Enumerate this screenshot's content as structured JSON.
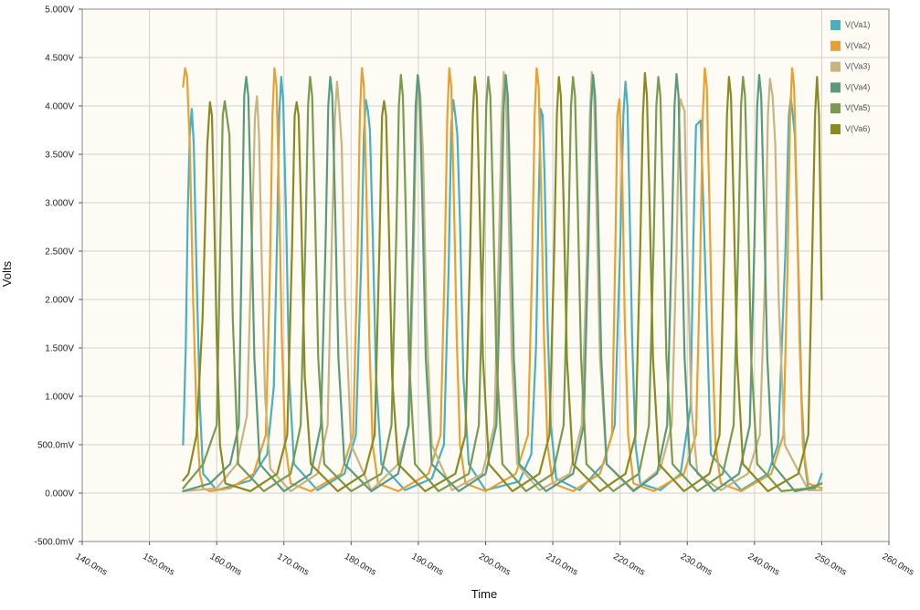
{
  "chart_data": {
    "type": "line",
    "title": "",
    "xlabel": "Time",
    "ylabel": "Volts",
    "x_unit": "ms",
    "y_unit": "V",
    "xlim": [
      140,
      260
    ],
    "ylim": [
      -0.5,
      5.0
    ],
    "x_ticks": [
      140,
      150,
      160,
      170,
      180,
      190,
      200,
      210,
      220,
      230,
      240,
      250,
      260
    ],
    "x_tick_labels": [
      "140.0ms",
      "150.0ms",
      "160.0ms",
      "170.0ms",
      "180.0ms",
      "190.0ms",
      "200.0ms",
      "210.0ms",
      "220.0ms",
      "230.0ms",
      "240.0ms",
      "250.0ms",
      "260.0ms"
    ],
    "y_ticks": [
      -0.5,
      0.0,
      0.5,
      1.0,
      1.5,
      2.0,
      2.5,
      3.0,
      3.5,
      4.0,
      4.5,
      5.0
    ],
    "y_tick_labels": [
      "-500.0mV",
      "0.000V",
      "500.0mV",
      "1.000V",
      "1.500V",
      "2.000V",
      "2.500V",
      "3.000V",
      "3.500V",
      "4.000V",
      "4.500V",
      "5.000V"
    ],
    "grid": true,
    "legend_position": "top-right",
    "background_color": "#fdfbf4",
    "series": [
      {
        "name": "V(Va1)",
        "color": "#4aafc0",
        "x": [
          155.0,
          155.4,
          155.7,
          156.0,
          156.3,
          156.6,
          157.0,
          157.5,
          158.0,
          160.0,
          165.0,
          167.5,
          168.5,
          169.0,
          169.3,
          169.6,
          169.9,
          170.3,
          170.8,
          171.5,
          175.0,
          179.0,
          180.7,
          181.5,
          181.9,
          182.2,
          182.5,
          182.8,
          183.2,
          183.7,
          184.5,
          188.0,
          192.0,
          193.8,
          194.5,
          194.9,
          195.2,
          195.5,
          195.8,
          196.2,
          196.7,
          197.5,
          200.0,
          205.0,
          206.8,
          207.5,
          207.9,
          208.2,
          208.5,
          208.8,
          209.2,
          209.7,
          210.5,
          214.0,
          217.5,
          219.2,
          220.0,
          220.5,
          220.8,
          221.1,
          221.4,
          221.8,
          222.3,
          223.0,
          226.0,
          229.0,
          230.5,
          230.9,
          231.3,
          231.6,
          232.0,
          232.6,
          233.5,
          238.0,
          242.0,
          243.5,
          244.6,
          245.1,
          245.4,
          245.7,
          246.0,
          246.5,
          247.0,
          247.5,
          248.0,
          248.5,
          249.0,
          249.5,
          250.0
        ],
        "y": [
          0.5,
          1.5,
          2.9,
          3.7,
          3.97,
          3.6,
          2.3,
          0.9,
          0.2,
          0.03,
          0.13,
          0.4,
          1.1,
          2.7,
          3.9,
          4.3,
          4.05,
          2.9,
          1.2,
          0.3,
          0.03,
          0.2,
          0.6,
          2.4,
          3.7,
          4.06,
          3.95,
          3.75,
          2.7,
          1.2,
          0.3,
          0.03,
          0.15,
          0.5,
          2.3,
          3.8,
          4.06,
          3.9,
          3.7,
          2.8,
          1.2,
          0.3,
          0.03,
          0.12,
          0.4,
          1.5,
          3.0,
          3.97,
          3.9,
          3.2,
          1.8,
          0.7,
          0.15,
          0.03,
          0.3,
          0.7,
          2.5,
          3.9,
          4.25,
          4.0,
          3.0,
          1.6,
          0.5,
          0.1,
          0.03,
          0.2,
          0.9,
          2.6,
          3.8,
          3.82,
          3.85,
          2.5,
          0.4,
          0.03,
          0.2,
          0.5,
          2.5,
          3.9,
          4.09,
          3.9,
          3.7,
          2.4,
          1.0,
          0.3,
          0.05,
          0.03,
          0.05,
          0.1,
          0.2
        ]
      },
      {
        "name": "V(Va2)",
        "color": "#e8a030",
        "x": [
          155.0,
          155.3,
          155.6,
          156.0,
          156.5,
          157.0,
          157.5,
          158.0,
          159.0,
          162.0,
          165.5,
          167.3,
          167.9,
          168.3,
          168.6,
          168.9,
          169.3,
          169.7,
          170.2,
          171.0,
          174.0,
          178.5,
          180.3,
          180.9,
          181.3,
          181.6,
          181.9,
          182.3,
          182.7,
          183.2,
          184.0,
          187.0,
          191.5,
          193.3,
          193.9,
          194.3,
          194.6,
          194.9,
          195.3,
          195.7,
          196.2,
          197.0,
          200.0,
          204.5,
          206.3,
          206.9,
          207.3,
          207.6,
          207.9,
          208.3,
          208.7,
          209.2,
          210.0,
          213.0,
          217.0,
          218.8,
          219.3,
          219.6,
          219.9,
          220.3,
          220.7,
          221.2,
          222.0,
          225.0,
          229.5,
          231.3,
          231.9,
          232.3,
          232.6,
          232.9,
          233.3,
          233.7,
          234.2,
          235.0,
          238.0,
          242.5,
          244.3,
          244.9,
          245.3,
          245.6,
          245.9,
          246.3,
          246.7,
          247.2,
          248.0,
          250.0
        ],
        "y": [
          4.2,
          4.39,
          4.3,
          3.6,
          2.0,
          0.8,
          0.2,
          0.05,
          0.02,
          0.05,
          0.2,
          0.6,
          2.2,
          3.9,
          4.39,
          4.2,
          3.0,
          1.6,
          0.5,
          0.1,
          0.02,
          0.2,
          0.6,
          2.3,
          3.9,
          4.39,
          4.2,
          3.0,
          1.6,
          0.5,
          0.1,
          0.02,
          0.2,
          0.6,
          2.3,
          3.9,
          4.39,
          4.2,
          3.0,
          1.6,
          0.5,
          0.1,
          0.02,
          0.2,
          0.6,
          2.3,
          3.9,
          4.39,
          4.2,
          3.0,
          1.6,
          0.5,
          0.1,
          0.02,
          0.2,
          0.6,
          2.5,
          3.9,
          4.07,
          3.4,
          1.8,
          0.6,
          0.1,
          0.02,
          0.2,
          0.6,
          2.3,
          3.9,
          4.39,
          4.2,
          3.0,
          1.6,
          0.5,
          0.1,
          0.02,
          0.2,
          0.6,
          2.3,
          3.9,
          4.39,
          4.2,
          3.0,
          1.6,
          0.5,
          0.1,
          0.05
        ]
      },
      {
        "name": "V(Va3)",
        "color": "#c8b480",
        "x": [
          155.0,
          160.0,
          163.0,
          164.5,
          165.3,
          165.7,
          166.0,
          166.3,
          166.7,
          167.2,
          168.0,
          171.0,
          175.0,
          176.5,
          177.2,
          177.6,
          177.9,
          178.2,
          178.6,
          179.1,
          180.0,
          183.0,
          187.0,
          188.6,
          189.3,
          189.7,
          190.0,
          190.3,
          190.7,
          191.2,
          192.0,
          195.0,
          199.5,
          201.3,
          202.0,
          202.4,
          202.7,
          203.0,
          203.4,
          203.9,
          204.7,
          208.0,
          212.5,
          214.3,
          215.1,
          215.5,
          215.8,
          216.1,
          216.5,
          217.0,
          218.0,
          222.0,
          226.0,
          227.7,
          228.4,
          228.8,
          229.0,
          229.3,
          229.6,
          230.0,
          230.6,
          231.5,
          235.0,
          239.0,
          240.8,
          241.6,
          242.0,
          242.3,
          242.7,
          243.1,
          243.6,
          244.5,
          248.0,
          250.0
        ],
        "y": [
          0.02,
          0.05,
          0.3,
          0.8,
          2.8,
          3.9,
          4.1,
          3.7,
          2.4,
          1.0,
          0.25,
          0.02,
          0.2,
          0.7,
          2.8,
          3.9,
          4.25,
          4.0,
          3.6,
          2.0,
          0.5,
          0.03,
          0.3,
          0.7,
          2.5,
          3.9,
          4.3,
          4.1,
          3.5,
          1.8,
          0.5,
          0.03,
          0.2,
          0.7,
          2.6,
          3.9,
          4.35,
          4.2,
          3.0,
          1.4,
          0.3,
          0.03,
          0.2,
          0.7,
          2.5,
          3.9,
          4.35,
          4.2,
          3.0,
          1.4,
          0.3,
          0.03,
          0.25,
          0.7,
          2.5,
          3.9,
          4.07,
          4.0,
          3.95,
          2.5,
          0.9,
          0.2,
          0.03,
          0.2,
          0.6,
          2.3,
          3.9,
          4.28,
          4.1,
          3.6,
          2.0,
          0.5,
          0.03,
          0.03
        ]
      },
      {
        "name": "V(Va4)",
        "color": "#5a9a7a",
        "x": [
          155.0,
          159.0,
          162.0,
          163.3,
          163.8,
          164.1,
          164.4,
          164.7,
          165.1,
          165.6,
          166.4,
          170.0,
          174.0,
          175.5,
          176.2,
          176.6,
          176.9,
          177.2,
          177.6,
          178.1,
          179.0,
          183.0,
          187.0,
          188.5,
          189.2,
          189.6,
          189.9,
          190.2,
          190.6,
          191.1,
          192.0,
          196.0,
          200.0,
          201.6,
          202.3,
          202.7,
          203.0,
          203.3,
          203.7,
          204.2,
          205.0,
          209.0,
          213.0,
          214.6,
          215.3,
          215.7,
          216.0,
          216.3,
          216.7,
          217.2,
          218.0,
          222.0,
          225.5,
          227.0,
          227.7,
          228.1,
          228.4,
          228.7,
          229.1,
          229.6,
          230.4,
          234.0,
          237.7,
          239.3,
          240.0,
          240.4,
          240.7,
          241.0,
          241.4,
          241.9,
          242.7,
          246.0,
          248.5,
          250.0
        ],
        "y": [
          0.02,
          0.1,
          0.3,
          0.7,
          2.8,
          4.1,
          4.3,
          4.1,
          3.0,
          1.4,
          0.3,
          0.02,
          0.2,
          0.7,
          2.6,
          4.0,
          4.3,
          4.1,
          3.0,
          1.4,
          0.3,
          0.02,
          0.2,
          0.7,
          2.6,
          4.0,
          4.32,
          4.1,
          3.0,
          1.4,
          0.3,
          0.02,
          0.2,
          0.7,
          2.6,
          4.0,
          4.32,
          4.1,
          3.0,
          1.4,
          0.3,
          0.02,
          0.2,
          0.7,
          2.6,
          4.0,
          4.32,
          4.1,
          3.0,
          1.4,
          0.3,
          0.02,
          0.2,
          0.7,
          2.6,
          4.0,
          4.33,
          4.1,
          3.0,
          1.4,
          0.3,
          0.02,
          0.2,
          0.7,
          2.6,
          4.0,
          4.32,
          4.1,
          3.0,
          1.4,
          0.3,
          0.02,
          0.05,
          0.1
        ]
      },
      {
        "name": "V(Va5)",
        "color": "#7a9a50",
        "x": [
          155.0,
          158.0,
          160.0,
          160.6,
          160.9,
          161.2,
          161.5,
          161.9,
          162.4,
          163.2,
          167.0,
          171.0,
          172.5,
          173.2,
          173.6,
          173.9,
          174.2,
          174.6,
          175.1,
          176.0,
          180.0,
          184.5,
          186.0,
          186.7,
          187.1,
          187.4,
          187.7,
          188.1,
          188.6,
          189.5,
          193.0,
          197.5,
          199.0,
          199.7,
          200.1,
          200.4,
          200.7,
          201.1,
          201.6,
          202.5,
          206.0,
          210.0,
          211.6,
          212.3,
          212.7,
          213.0,
          213.3,
          213.7,
          214.2,
          215.0,
          219.0,
          222.8,
          224.3,
          225.0,
          225.4,
          225.7,
          226.0,
          226.4,
          226.9,
          227.8,
          231.5,
          235.3,
          236.9,
          237.6,
          238.0,
          238.3,
          238.6,
          239.0,
          239.5,
          240.4,
          244.0,
          248.0,
          250.0
        ],
        "y": [
          0.05,
          0.3,
          0.7,
          2.8,
          3.9,
          4.05,
          3.9,
          3.7,
          1.8,
          0.3,
          0.02,
          0.2,
          0.7,
          2.6,
          4.0,
          4.3,
          4.1,
          3.0,
          1.4,
          0.3,
          0.02,
          0.2,
          0.7,
          2.6,
          4.0,
          4.32,
          4.1,
          3.0,
          1.4,
          0.3,
          0.02,
          0.2,
          0.7,
          2.6,
          4.0,
          4.3,
          4.1,
          3.0,
          1.4,
          0.3,
          0.02,
          0.2,
          0.7,
          2.6,
          4.0,
          4.3,
          4.1,
          3.0,
          1.4,
          0.3,
          0.02,
          0.2,
          0.7,
          2.6,
          4.0,
          4.3,
          4.1,
          3.0,
          1.4,
          0.3,
          0.02,
          0.2,
          0.7,
          2.6,
          4.0,
          4.3,
          4.1,
          3.0,
          1.4,
          0.3,
          0.02,
          0.05,
          0.1
        ]
      },
      {
        "name": "V(Va6)",
        "color": "#8a8a20",
        "x": [
          155.0,
          155.8,
          157.0,
          157.9,
          158.6,
          159.0,
          159.3,
          159.6,
          160.0,
          160.5,
          161.3,
          165.0,
          169.0,
          170.5,
          171.2,
          171.6,
          171.9,
          172.2,
          172.6,
          173.1,
          174.0,
          178.0,
          182.0,
          183.5,
          184.2,
          184.6,
          184.9,
          185.2,
          185.6,
          186.1,
          187.0,
          191.0,
          195.5,
          197.0,
          197.7,
          198.1,
          198.4,
          198.7,
          199.1,
          199.6,
          200.5,
          204.0,
          208.0,
          209.5,
          210.2,
          210.6,
          210.9,
          211.2,
          211.6,
          212.1,
          213.0,
          217.0,
          220.8,
          222.3,
          223.0,
          223.4,
          223.7,
          224.0,
          224.4,
          224.9,
          225.8,
          229.5,
          233.3,
          234.8,
          235.5,
          235.9,
          236.2,
          236.5,
          236.9,
          237.4,
          238.3,
          242.0,
          246.5,
          248.0,
          248.6,
          249.0,
          249.3,
          249.6,
          250.0
        ],
        "y": [
          0.13,
          0.2,
          0.6,
          1.8,
          3.6,
          4.04,
          3.9,
          3.0,
          1.6,
          0.5,
          0.1,
          0.02,
          0.2,
          0.6,
          2.5,
          3.9,
          4.04,
          3.9,
          2.8,
          1.2,
          0.3,
          0.02,
          0.2,
          0.6,
          2.5,
          3.9,
          4.05,
          3.9,
          2.8,
          1.2,
          0.3,
          0.02,
          0.2,
          0.6,
          2.5,
          3.9,
          4.3,
          4.1,
          3.0,
          1.4,
          0.3,
          0.02,
          0.2,
          0.6,
          2.5,
          3.9,
          4.3,
          4.1,
          3.0,
          1.4,
          0.3,
          0.02,
          0.2,
          0.6,
          2.5,
          3.9,
          4.34,
          4.1,
          3.0,
          1.4,
          0.3,
          0.02,
          0.2,
          0.6,
          2.5,
          3.9,
          4.3,
          4.1,
          3.0,
          1.4,
          0.3,
          0.02,
          0.2,
          0.6,
          2.5,
          3.9,
          4.3,
          3.9,
          2.0
        ]
      }
    ]
  }
}
